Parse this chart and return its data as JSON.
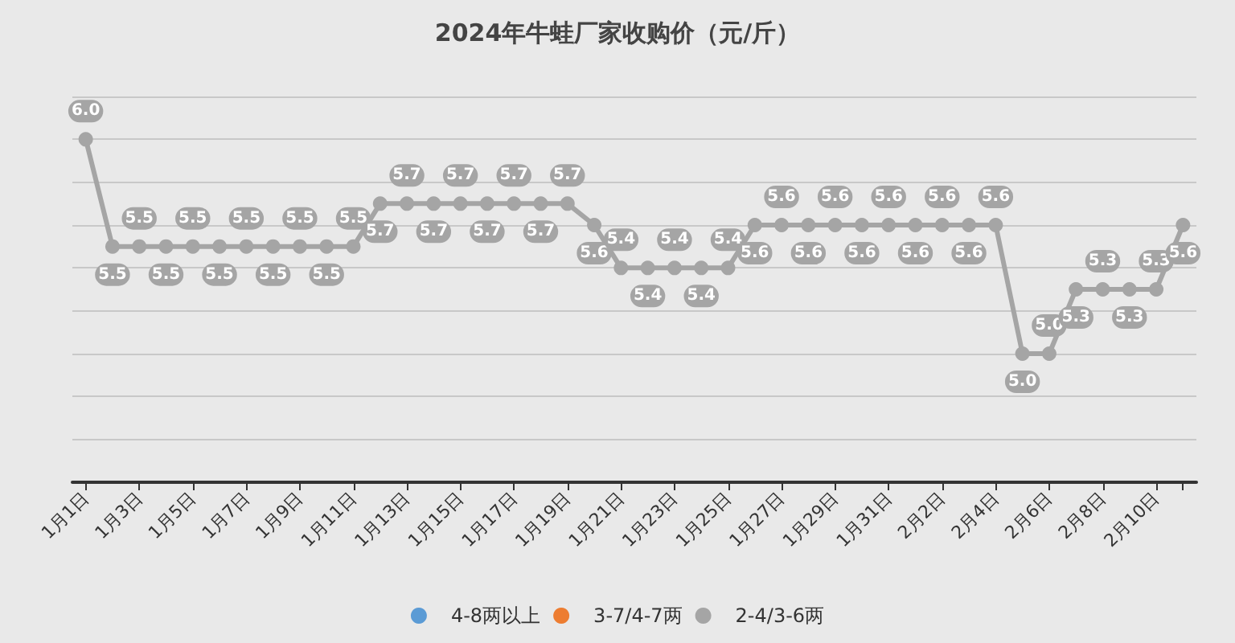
{
  "chart_data": {
    "type": "line",
    "title": "2024年牛蛙厂家收购价（元/斤）",
    "categories": [
      "1月1日",
      null,
      "1月3日",
      null,
      "1月5日",
      null,
      "1月7日",
      null,
      "1月9日",
      null,
      "1月11日",
      null,
      "1月13日",
      null,
      "1月15日",
      null,
      "1月17日",
      null,
      "1月19日",
      null,
      "1月21日",
      null,
      "1月23日",
      null,
      "1月25日",
      null,
      "1月27日",
      null,
      "1月29日",
      null,
      "1月31日",
      null,
      "2月2日",
      null,
      "2月4日",
      null,
      "2月6日",
      null,
      "2月8日",
      null,
      "2月10日",
      null
    ],
    "series": [
      {
        "name": "4-8两以上",
        "color": "#5b9bd5",
        "values": [
          null,
          null,
          null,
          null,
          null,
          null,
          null,
          null,
          null,
          null,
          null,
          null,
          null,
          null,
          null,
          null,
          null,
          null,
          null,
          null,
          null,
          null,
          null,
          null,
          null,
          null,
          null,
          null,
          null,
          null,
          null,
          null,
          null,
          null,
          null,
          null,
          null,
          null,
          null,
          null,
          null,
          null
        ]
      },
      {
        "name": "3-7/4-7两",
        "color": "#ed7d31",
        "values": [
          null,
          null,
          null,
          null,
          null,
          null,
          null,
          null,
          null,
          null,
          null,
          null,
          null,
          null,
          null,
          null,
          null,
          null,
          null,
          null,
          null,
          null,
          null,
          null,
          null,
          null,
          null,
          null,
          null,
          null,
          null,
          null,
          null,
          null,
          null,
          null,
          null,
          null,
          null,
          null,
          null,
          null
        ]
      },
      {
        "name": "2-4/3-6两",
        "color": "#a5a5a5",
        "values": [
          6.0,
          5.5,
          5.5,
          5.5,
          5.5,
          5.5,
          5.5,
          5.5,
          5.5,
          5.5,
          5.5,
          5.7,
          5.7,
          5.7,
          5.7,
          5.7,
          5.7,
          5.7,
          5.7,
          5.6,
          5.4,
          5.4,
          5.4,
          5.4,
          5.4,
          5.6,
          5.6,
          5.6,
          5.6,
          5.6,
          5.6,
          5.6,
          5.6,
          5.6,
          5.6,
          5.0,
          5.0,
          5.3,
          5.3,
          5.3,
          5.3,
          5.6
        ],
        "value_labels": [
          "6.0",
          "5.5",
          "5.5",
          "5.5",
          "5.5",
          "5.5",
          "5.5",
          "5.5",
          "5.5",
          "5.5",
          "5.5",
          "5.7",
          "5.7",
          "5.7",
          "5.7",
          "5.7",
          "5.7",
          "5.7",
          "5.7",
          "5.6",
          "5.4",
          "5.4",
          "5.4",
          "5.4",
          "5.4",
          "5.6",
          "5.6",
          "5.6",
          "5.6",
          "5.6",
          "5.6",
          "5.6",
          "5.6",
          "5.6",
          "5.6",
          "5.0",
          "5.0",
          "5.3",
          "5.3",
          "5.3",
          "5.3",
          "5.6"
        ]
      }
    ],
    "ylim": [
      4.4,
      6.2
    ],
    "yticks": [
      {
        "value": 4.4,
        "label": null
      },
      {
        "value": 4.6,
        "label": null
      },
      {
        "value": 4.8,
        "label": null
      },
      {
        "value": 5.0,
        "label": null
      },
      {
        "value": 5.2,
        "label": null
      },
      {
        "value": 5.4,
        "label": null
      },
      {
        "value": 5.6,
        "label": null
      },
      {
        "value": 5.8,
        "label": null
      },
      {
        "value": 6.0,
        "label": null
      },
      {
        "value": 6.2,
        "label": null
      }
    ],
    "tick_labels": "x",
    "grid": "y",
    "legend": "bottom",
    "marker": "circle",
    "line_style": "solid"
  }
}
